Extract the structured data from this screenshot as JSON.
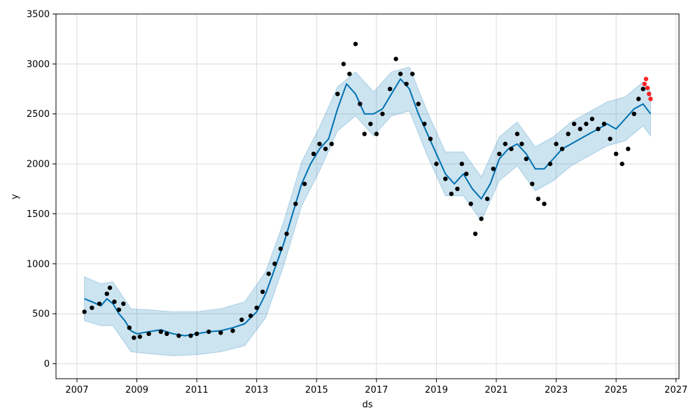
{
  "chart_data": {
    "type": "scatter",
    "xlabel": "ds",
    "ylabel": "y",
    "x_ticks": [
      "2007",
      "2009",
      "2011",
      "2013",
      "2015",
      "2017",
      "2019",
      "2021",
      "2023",
      "2025",
      "2027"
    ],
    "y_ticks": [
      "0",
      "500",
      "1000",
      "1500",
      "2000",
      "2500",
      "3000",
      "3500"
    ],
    "xlim": [
      2006.3,
      2027.1
    ],
    "ylim": [
      -150,
      3500
    ],
    "grid": true,
    "colors": {
      "observed": "#000000",
      "forecast_points": "#ff0000",
      "trend_line": "#0072b2",
      "uncertainty_band": "#0072b2"
    },
    "series": [
      {
        "role": "observed",
        "points": [
          [
            2007.25,
            520
          ],
          [
            2007.5,
            560
          ],
          [
            2007.75,
            600
          ],
          [
            2008.0,
            700
          ],
          [
            2008.1,
            760
          ],
          [
            2008.25,
            620
          ],
          [
            2008.4,
            540
          ],
          [
            2008.55,
            600
          ],
          [
            2008.75,
            360
          ],
          [
            2008.9,
            260
          ],
          [
            2009.1,
            270
          ],
          [
            2009.4,
            300
          ],
          [
            2009.8,
            320
          ],
          [
            2010.0,
            300
          ],
          [
            2010.4,
            280
          ],
          [
            2010.8,
            280
          ],
          [
            2011.0,
            300
          ],
          [
            2011.4,
            320
          ],
          [
            2011.8,
            310
          ],
          [
            2012.2,
            330
          ],
          [
            2012.5,
            440
          ],
          [
            2012.8,
            480
          ],
          [
            2013.0,
            560
          ],
          [
            2013.2,
            720
          ],
          [
            2013.4,
            900
          ],
          [
            2013.6,
            1000
          ],
          [
            2013.8,
            1150
          ],
          [
            2014.0,
            1300
          ],
          [
            2014.3,
            1600
          ],
          [
            2014.6,
            1800
          ],
          [
            2014.9,
            2100
          ],
          [
            2015.1,
            2200
          ],
          [
            2015.3,
            2150
          ],
          [
            2015.5,
            2200
          ],
          [
            2015.7,
            2700
          ],
          [
            2015.9,
            3000
          ],
          [
            2016.1,
            2900
          ],
          [
            2016.3,
            3200
          ],
          [
            2016.45,
            2600
          ],
          [
            2016.6,
            2300
          ],
          [
            2016.8,
            2400
          ],
          [
            2017.0,
            2300
          ],
          [
            2017.2,
            2500
          ],
          [
            2017.45,
            2750
          ],
          [
            2017.65,
            3050
          ],
          [
            2017.8,
            2900
          ],
          [
            2018.0,
            2800
          ],
          [
            2018.2,
            2900
          ],
          [
            2018.4,
            2600
          ],
          [
            2018.6,
            2400
          ],
          [
            2018.8,
            2250
          ],
          [
            2019.0,
            2000
          ],
          [
            2019.3,
            1850
          ],
          [
            2019.5,
            1700
          ],
          [
            2019.7,
            1750
          ],
          [
            2019.85,
            2000
          ],
          [
            2020.0,
            1900
          ],
          [
            2020.15,
            1600
          ],
          [
            2020.3,
            1300
          ],
          [
            2020.5,
            1450
          ],
          [
            2020.7,
            1650
          ],
          [
            2020.9,
            1950
          ],
          [
            2021.1,
            2100
          ],
          [
            2021.3,
            2200
          ],
          [
            2021.5,
            2150
          ],
          [
            2021.7,
            2300
          ],
          [
            2021.85,
            2200
          ],
          [
            2022.0,
            2050
          ],
          [
            2022.2,
            1800
          ],
          [
            2022.4,
            1650
          ],
          [
            2022.6,
            1600
          ],
          [
            2022.8,
            2000
          ],
          [
            2023.0,
            2200
          ],
          [
            2023.2,
            2150
          ],
          [
            2023.4,
            2300
          ],
          [
            2023.6,
            2400
          ],
          [
            2023.8,
            2350
          ],
          [
            2024.0,
            2400
          ],
          [
            2024.2,
            2450
          ],
          [
            2024.4,
            2350
          ],
          [
            2024.6,
            2400
          ],
          [
            2024.8,
            2250
          ],
          [
            2025.0,
            2100
          ],
          [
            2025.2,
            2000
          ],
          [
            2025.4,
            2150
          ],
          [
            2025.6,
            2500
          ],
          [
            2025.75,
            2650
          ],
          [
            2025.9,
            2750
          ]
        ]
      },
      {
        "role": "forecast_points",
        "points": [
          [
            2025.95,
            2800
          ],
          [
            2026.0,
            2850
          ],
          [
            2026.05,
            2760
          ],
          [
            2026.1,
            2700
          ],
          [
            2026.15,
            2650
          ]
        ]
      },
      {
        "role": "trend_line",
        "x": [
          2007.25,
          2007.5,
          2007.8,
          2008.0,
          2008.2,
          2008.4,
          2008.6,
          2008.8,
          2009.0,
          2009.4,
          2009.8,
          2010.2,
          2010.6,
          2011.0,
          2011.4,
          2011.8,
          2012.2,
          2012.6,
          2013.0,
          2013.3,
          2013.6,
          2013.9,
          2014.2,
          2014.5,
          2014.8,
          2015.1,
          2015.4,
          2015.7,
          2016.0,
          2016.3,
          2016.6,
          2016.9,
          2017.2,
          2017.5,
          2017.8,
          2018.1,
          2018.4,
          2018.7,
          2019.0,
          2019.3,
          2019.6,
          2019.9,
          2020.2,
          2020.5,
          2020.8,
          2021.1,
          2021.4,
          2021.7,
          2022.0,
          2022.3,
          2022.6,
          2022.9,
          2023.2,
          2023.5,
          2023.8,
          2024.1,
          2024.4,
          2024.7,
          2025.0,
          2025.3,
          2025.6,
          2025.9,
          2026.15
        ],
        "y": [
          650,
          620,
          580,
          650,
          600,
          500,
          430,
          330,
          300,
          320,
          340,
          300,
          280,
          300,
          320,
          330,
          360,
          400,
          520,
          700,
          950,
          1200,
          1500,
          1800,
          2000,
          2150,
          2250,
          2550,
          2800,
          2700,
          2500,
          2500,
          2550,
          2700,
          2850,
          2750,
          2500,
          2300,
          2100,
          1900,
          1800,
          1900,
          1750,
          1650,
          1800,
          2050,
          2150,
          2200,
          2100,
          1950,
          1950,
          2050,
          2150,
          2200,
          2250,
          2300,
          2350,
          2400,
          2350,
          2450,
          2550,
          2600,
          2500
        ]
      },
      {
        "role": "uncertainty_band",
        "x": [
          2007.25,
          2007.8,
          2008.2,
          2008.8,
          2009.4,
          2010.2,
          2011.0,
          2011.8,
          2012.6,
          2013.3,
          2013.9,
          2014.5,
          2015.1,
          2015.7,
          2016.3,
          2016.9,
          2017.5,
          2018.1,
          2018.7,
          2019.3,
          2019.9,
          2020.5,
          2021.1,
          2021.7,
          2022.3,
          2022.9,
          2023.5,
          2024.1,
          2024.7,
          2025.3,
          2025.9,
          2026.15
        ],
        "y_low": [
          430,
          380,
          380,
          120,
          100,
          80,
          90,
          120,
          180,
          460,
          980,
          1580,
          1930,
          2330,
          2480,
          2280,
          2480,
          2530,
          2080,
          1680,
          1680,
          1430,
          1830,
          1980,
          1730,
          1830,
          1980,
          2080,
          2180,
          2230,
          2380,
          2280
        ],
        "y_high": [
          870,
          800,
          820,
          550,
          540,
          520,
          520,
          550,
          620,
          920,
          1420,
          2020,
          2370,
          2770,
          2920,
          2720,
          2920,
          2970,
          2520,
          2120,
          2120,
          1870,
          2270,
          2420,
          2170,
          2270,
          2420,
          2520,
          2620,
          2670,
          2820,
          2720
        ]
      }
    ]
  }
}
